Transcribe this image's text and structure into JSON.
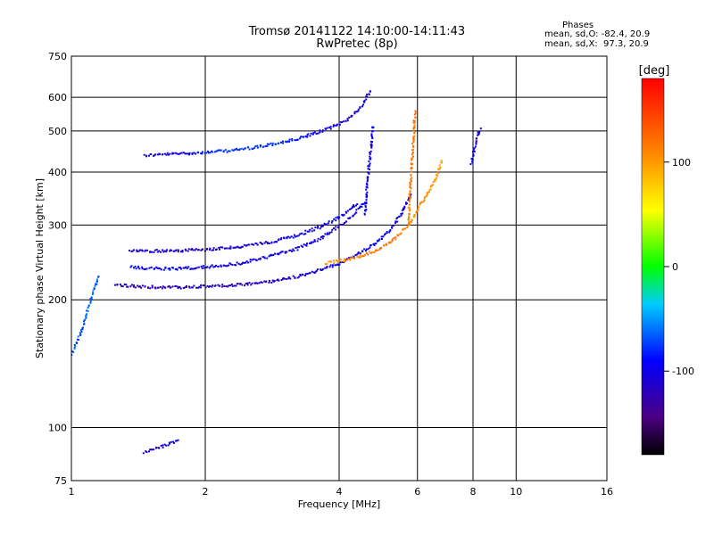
{
  "header": {
    "title_line1": "Tromsø 20141122 14:10:00-14:11:43",
    "title_line2": "RwPretec (8p)"
  },
  "stats": {
    "heading": "Phases",
    "line_o": "mean, sd,O: -82.4, 20.9",
    "line_x": "mean, sd,X:  97.3, 20.9"
  },
  "colors": {
    "axis": "#000000",
    "grid": "#000000",
    "background": "#ffffff"
  },
  "chart_data": {
    "type": "scatter",
    "xlabel": "Frequency [MHz]",
    "ylabel": "Stationary phase Virtual Height [km]",
    "x_scale": "log",
    "y_scale": "log",
    "xlim": [
      1,
      16
    ],
    "ylim": [
      75,
      750
    ],
    "x_ticks": [
      1,
      2,
      4,
      6,
      8,
      10,
      16
    ],
    "x_tick_labels": [
      "1",
      "2",
      "4",
      "6",
      "8",
      "10",
      "16"
    ],
    "y_ticks": [
      75,
      100,
      200,
      300,
      400,
      500,
      600,
      750
    ],
    "y_tick_labels": [
      "75",
      "100",
      "200",
      "300",
      "400",
      "500",
      "600",
      "750"
    ],
    "grid": true,
    "colorbar": {
      "label": "[deg]",
      "range": [
        -180,
        180
      ],
      "ticks": [
        100,
        0,
        -100
      ],
      "tick_labels": [
        "100",
        "0",
        "-100"
      ]
    },
    "series": [
      {
        "traces": [
          {
            "f": [
              1.45,
              1.6,
              1.8,
              2.0,
              2.3,
              2.6,
              2.9,
              3.2,
              3.5,
              3.8,
              4.1,
              4.3,
              4.5,
              4.7
            ],
            "h": [
              440,
              442,
              445,
              447,
              452,
              460,
              470,
              480,
              495,
              510,
              530,
              550,
              580,
              630
            ],
            "phase": [
              -110,
              -105,
              -100,
              -85,
              -75,
              -80,
              -75,
              -90,
              -95,
              -100,
              -105,
              -110,
              -100,
              -100
            ]
          },
          {
            "f": [
              1.25,
              1.4,
              1.6,
              1.8,
              2.0,
              2.4,
              2.8,
              3.2,
              3.6,
              4.0,
              4.3,
              4.6,
              4.9,
              5.2,
              5.5,
              5.8
            ],
            "h": [
              218,
              216,
              215,
              215,
              216,
              218,
              222,
              228,
              236,
              245,
              255,
              265,
              278,
              295,
              320,
              360
            ],
            "phase": [
              -115,
              -120,
              -125,
              -120,
              -115,
              -120,
              -115,
              -110,
              -105,
              -100,
              -95,
              -95,
              -90,
              -100,
              -105,
              -110
            ]
          },
          {
            "f": [
              1.35,
              1.5,
              1.7,
              2.0,
              2.4,
              2.8,
              3.2,
              3.6,
              4.0,
              4.3,
              4.6
            ],
            "h": [
              240,
              238,
              238,
              240,
              245,
              255,
              265,
              280,
              300,
              320,
              345
            ],
            "phase": [
              -90,
              -95,
              -95,
              -100,
              -105,
              -100,
              -100,
              -105,
              -110,
              -100,
              -100
            ]
          },
          {
            "f": [
              1.35,
              1.5,
              1.7,
              2.0,
              2.4,
              2.8,
              3.2,
              3.6,
              4.0,
              4.4
            ],
            "h": [
              262,
              262,
              262,
              264,
              268,
              275,
              285,
              298,
              315,
              340
            ],
            "phase": [
              -105,
              -110,
              -110,
              -110,
              -105,
              -105,
              -100,
              -100,
              -95,
              -100
            ]
          },
          {
            "f": [
              3.7,
              4.0,
              4.3,
              4.6,
              4.9,
              5.2,
              5.5,
              5.8,
              6.1,
              6.5,
              6.8
            ],
            "h": [
              245,
              248,
              252,
              258,
              265,
              275,
              290,
              310,
              340,
              380,
              430
            ],
            "phase": [
              100,
              105,
              110,
              115,
              120,
              120,
              110,
              105,
              110,
              100,
              95
            ]
          },
          {
            "f": [
              4.55,
              4.6,
              4.65,
              4.7,
              4.75
            ],
            "h": [
              320,
              370,
              420,
              470,
              520
            ],
            "phase": [
              -95,
              -100,
              -100,
              -105,
              -95
            ]
          },
          {
            "f": [
              5.7,
              5.75,
              5.8,
              5.85,
              5.9
            ],
            "h": [
              300,
              360,
              420,
              480,
              560
            ],
            "phase": [
              110,
              115,
              120,
              115,
              125
            ]
          },
          {
            "f": [
              1.0,
              1.05,
              1.1,
              1.15
            ],
            "h": [
              150,
              170,
              200,
              230
            ],
            "phase": [
              -65,
              -70,
              -60,
              -70
            ]
          },
          {
            "f": [
              1.45,
              1.55,
              1.65,
              1.75
            ],
            "h": [
              88,
              90,
              92,
              94
            ],
            "phase": [
              -110,
              -115,
              -105,
              -110
            ]
          },
          {
            "f": [
              7.9,
              8.0,
              8.1,
              8.3
            ],
            "h": [
              420,
              450,
              480,
              510
            ],
            "phase": [
              -100,
              -95,
              -105,
              -100
            ]
          }
        ]
      }
    ]
  }
}
